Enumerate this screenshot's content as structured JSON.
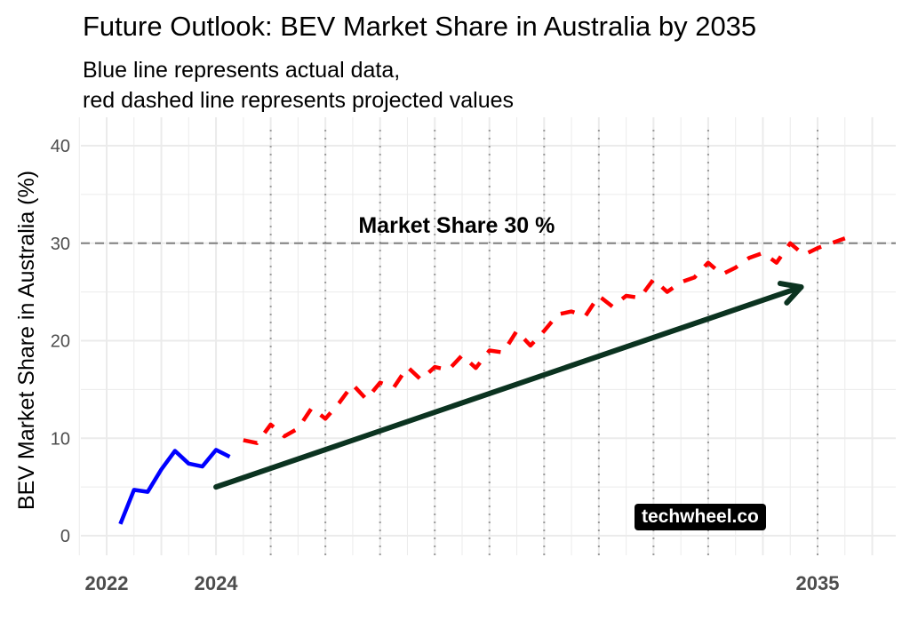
{
  "title": "Future Outlook: BEV Market Share in Australia by 2035",
  "subtitle_lines": [
    "Blue line represents actual data,",
    "red dashed line represents projected values"
  ],
  "watermark": "techwheel.co",
  "colors": {
    "actual": "#0000ff",
    "projected": "#ff0000",
    "arrow": "#0b3320",
    "target_line": "#808080",
    "grid": "#ebebeb",
    "background": "#ffffff"
  },
  "chart_data": {
    "type": "line",
    "title": "Future Outlook: BEV Market Share in Australia by 2035",
    "xlabel": "",
    "ylabel": "BEV Market Share in Australia (%)",
    "xlim": [
      2021.5,
      2036.0
    ],
    "ylim": [
      -2,
      42
    ],
    "x_ticks": [
      {
        "value": 2022,
        "label": "2022"
      },
      {
        "value": 2024,
        "label": "2024"
      },
      {
        "value": 2035,
        "label": "2035"
      }
    ],
    "y_ticks": [
      {
        "value": 0,
        "label": "0"
      },
      {
        "value": 10,
        "label": "10"
      },
      {
        "value": 20,
        "label": "20"
      },
      {
        "value": 30,
        "label": "30"
      },
      {
        "value": 40,
        "label": "40"
      }
    ],
    "vertical_dotted_lines": [
      2025,
      2026,
      2027,
      2028,
      2029,
      2030,
      2031,
      2032,
      2033,
      2035
    ],
    "series": [
      {
        "style": "solid",
        "color": "#0000ff",
        "x": [
          2022.25,
          2022.5,
          2022.75,
          2023.0,
          2023.25,
          2023.5,
          2023.75,
          2024.0,
          2024.25
        ],
        "y": [
          1.2,
          4.7,
          4.5,
          6.8,
          8.7,
          7.4,
          7.1,
          8.8,
          8.1
        ]
      },
      {
        "style": "dashed",
        "color": "#ff0000",
        "x": [
          2024.5,
          2024.75,
          2025.0,
          2025.25,
          2025.5,
          2025.75,
          2026.0,
          2026.25,
          2026.5,
          2026.75,
          2027.0,
          2027.25,
          2027.5,
          2027.75,
          2028.0,
          2028.25,
          2028.5,
          2028.75,
          2029.0,
          2029.25,
          2029.5,
          2029.75,
          2030.0,
          2030.25,
          2030.5,
          2030.75,
          2031.0,
          2031.25,
          2031.5,
          2031.75,
          2032.0,
          2032.25,
          2032.5,
          2032.75,
          2033.0,
          2033.25,
          2033.5,
          2033.75,
          2034.0,
          2034.25,
          2034.5,
          2034.75,
          2035.0,
          2035.25,
          2035.5
        ],
        "y": [
          9.8,
          9.5,
          11.4,
          10.2,
          11.0,
          13.1,
          12.0,
          13.6,
          15.5,
          14.0,
          15.7,
          15.2,
          17.3,
          16.0,
          17.3,
          17.0,
          18.5,
          17.2,
          19.0,
          18.8,
          21.0,
          19.5,
          21.0,
          22.7,
          23.0,
          22.5,
          24.6,
          23.5,
          24.6,
          24.4,
          26.3,
          25.0,
          26.0,
          26.5,
          28.0,
          26.8,
          27.5,
          28.5,
          29.0,
          28.0,
          30.0,
          28.8,
          29.5,
          30.0,
          30.5
        ]
      }
    ],
    "annotations": [
      {
        "type": "hline",
        "y": 30,
        "style": "dashed",
        "label": "Market Share 30 %",
        "label_x": 2028.4
      },
      {
        "type": "arrow",
        "from": [
          2024,
          5
        ],
        "to": [
          2034.7,
          25.5
        ]
      }
    ]
  }
}
